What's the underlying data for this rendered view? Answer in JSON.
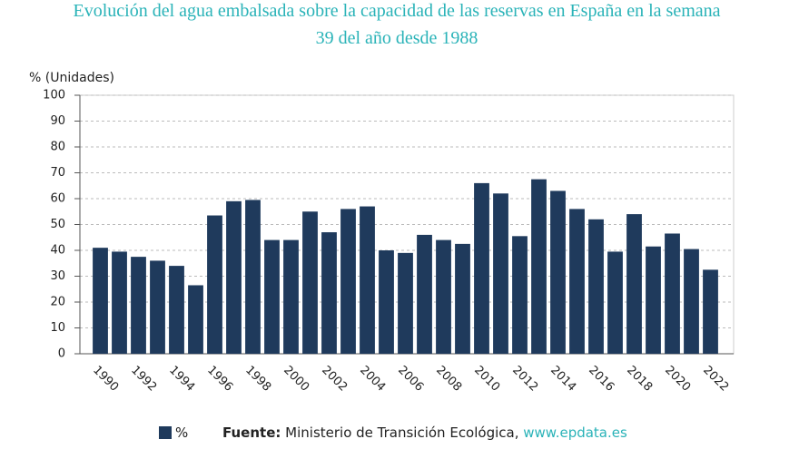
{
  "chart_data": {
    "type": "bar",
    "title": "Evolución del agua embalsada sobre la capacidad de las reservas en España en la semana",
    "subtitle": "39 del año desde 1988",
    "y_label": "% (Unidades)",
    "categories": [
      "1990",
      null,
      "1992",
      null,
      "1994",
      null,
      "1996",
      null,
      "1998",
      null,
      "2000",
      null,
      "2002",
      null,
      "2004",
      null,
      "2006",
      null,
      "2008",
      null,
      "2010",
      null,
      "2012",
      null,
      "2014",
      null,
      "2016",
      null,
      "2018",
      null,
      "2020",
      null,
      "2022"
    ],
    "series": [
      {
        "name": "%",
        "color": "#1f3a5c",
        "values": [
          41,
          39.5,
          37.5,
          36,
          34,
          26.5,
          53.5,
          59,
          59.5,
          44,
          44,
          55,
          47,
          56,
          57,
          40,
          39,
          46,
          44,
          42.5,
          66,
          62,
          45.5,
          67.5,
          63,
          56,
          52,
          39.5,
          54,
          41.5,
          46.5,
          40.5,
          32.5
        ]
      }
    ],
    "ylim": [
      0,
      100
    ],
    "yticks": [
      0,
      10,
      20,
      30,
      40,
      50,
      60,
      70,
      80,
      90,
      100
    ],
    "grid": true,
    "source": {
      "label": "Fuente:",
      "text": "Ministerio de Transición Ecológica,",
      "link": "www.epdata.es"
    }
  }
}
